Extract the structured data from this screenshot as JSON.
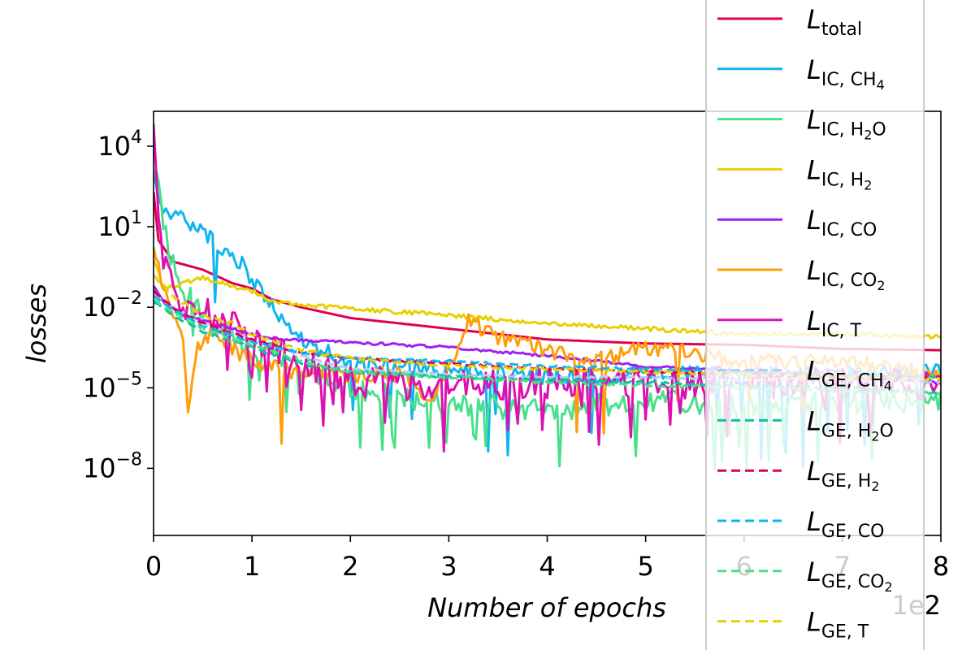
{
  "chart_data": {
    "type": "line",
    "title": "",
    "xlabel": "Number of epochs",
    "ylabel": "losses",
    "x_offset_label": "1e2",
    "xlim": [
      0,
      8
    ],
    "ylim_log10": [
      -10.5,
      5.3
    ],
    "yscale": "log",
    "grid": false,
    "legend_placement": "right",
    "x_ticks": [
      "0",
      "1",
      "2",
      "3",
      "4",
      "5",
      "6",
      "7",
      "8"
    ],
    "y_ticks": [
      {
        "base": "10",
        "exp": "4",
        "log10": 4
      },
      {
        "base": "10",
        "exp": "1",
        "log10": 1
      },
      {
        "base": "10",
        "exp": "−2",
        "log10": -2
      },
      {
        "base": "10",
        "exp": "−5",
        "log10": -5
      },
      {
        "base": "10",
        "exp": "−8",
        "log10": -8
      }
    ],
    "series": [
      {
        "name": "L_total",
        "main": "L",
        "sub": "total",
        "sub2": "",
        "sub3": "",
        "color": "#e0004e",
        "dash": false,
        "noise": 0,
        "dips": 0,
        "dip_depth": 0,
        "seed": 1,
        "points": [
          [
            0,
            2.3
          ],
          [
            0.05,
            0.5
          ],
          [
            0.2,
            -0.3
          ],
          [
            0.5,
            -0.6
          ],
          [
            0.8,
            -1.1
          ],
          [
            1.0,
            -1.3
          ],
          [
            1.2,
            -1.7
          ],
          [
            1.5,
            -2.0
          ],
          [
            2.0,
            -2.4
          ],
          [
            3.0,
            -2.8
          ],
          [
            4.0,
            -3.2
          ],
          [
            5.0,
            -3.35
          ],
          [
            6.0,
            -3.4
          ],
          [
            7.0,
            -3.55
          ],
          [
            8.0,
            -3.6
          ]
        ]
      },
      {
        "name": "L_IC,CH4",
        "main": "L",
        "sub": "IC, CH",
        "sub2": "4",
        "sub3": "",
        "color": "#0fb4f0",
        "dash": false,
        "noise": 0.3,
        "dips": 22,
        "dip_depth": 3.2,
        "seed": 2,
        "points": [
          [
            0,
            2.8
          ],
          [
            0.1,
            1.6
          ],
          [
            0.3,
            1.3
          ],
          [
            0.6,
            0.5
          ],
          [
            0.9,
            -0.4
          ],
          [
            1.1,
            -1.5
          ],
          [
            1.3,
            -2.4
          ],
          [
            1.5,
            -3.2
          ],
          [
            2,
            -4.1
          ],
          [
            3,
            -4.3
          ],
          [
            4,
            -4.6
          ],
          [
            5,
            -4.5
          ],
          [
            6,
            -4.5
          ],
          [
            7,
            -4.5
          ],
          [
            8,
            -4.4
          ]
        ]
      },
      {
        "name": "L_IC,H2O",
        "main": "L",
        "sub": "IC, H",
        "sub2": "2",
        "sub3": "O",
        "color": "#48e08a",
        "dash": false,
        "noise": 0.45,
        "dips": 26,
        "dip_depth": 2.5,
        "seed": 3,
        "points": [
          [
            0,
            3.0
          ],
          [
            0.05,
            2.5
          ],
          [
            0.15,
            0.0
          ],
          [
            0.3,
            -1.3
          ],
          [
            0.6,
            -2.5
          ],
          [
            1.0,
            -3.5
          ],
          [
            1.5,
            -4.2
          ],
          [
            2.0,
            -5.0
          ],
          [
            3.0,
            -5.6
          ],
          [
            4.0,
            -5.8
          ],
          [
            5.0,
            -5.5
          ],
          [
            6.0,
            -5.6
          ],
          [
            7.0,
            -5.5
          ],
          [
            8.0,
            -5.5
          ]
        ]
      },
      {
        "name": "L_IC,H2",
        "main": "L",
        "sub": "IC, H",
        "sub2": "2",
        "sub3": "",
        "color": "#e8d000",
        "dash": false,
        "noise": 0.08,
        "dips": 0,
        "dip_depth": 0,
        "seed": 4,
        "points": [
          [
            0,
            -0.2
          ],
          [
            0.1,
            -1.3
          ],
          [
            0.3,
            -1.1
          ],
          [
            0.5,
            -0.9
          ],
          [
            0.8,
            -1.2
          ],
          [
            1.0,
            -1.4
          ],
          [
            1.2,
            -1.8
          ],
          [
            1.5,
            -1.9
          ],
          [
            2.0,
            -2.05
          ],
          [
            3.0,
            -2.3
          ],
          [
            4.0,
            -2.6
          ],
          [
            5.0,
            -2.8
          ],
          [
            6.0,
            -3.0
          ],
          [
            7.0,
            -3.0
          ],
          [
            8.0,
            -3.1
          ]
        ]
      },
      {
        "name": "L_IC,CO",
        "main": "L",
        "sub": "IC, CO",
        "sub2": "",
        "sub3": "",
        "color": "#a020f0",
        "dash": false,
        "noise": 0.05,
        "dips": 0,
        "dip_depth": 0,
        "seed": 5,
        "points": [
          [
            0,
            -1.2
          ],
          [
            0.1,
            -1.8
          ],
          [
            0.3,
            -2.3
          ],
          [
            0.6,
            -2.6
          ],
          [
            1.0,
            -3.0
          ],
          [
            1.3,
            -3.2
          ],
          [
            2.0,
            -3.3
          ],
          [
            3.0,
            -3.5
          ],
          [
            4.0,
            -3.8
          ],
          [
            5.0,
            -4.2
          ],
          [
            6.0,
            -4.4
          ],
          [
            7.0,
            -4.6
          ],
          [
            8.0,
            -4.8
          ]
        ]
      },
      {
        "name": "L_IC,CO2",
        "main": "L",
        "sub": "IC, CO",
        "sub2": "2",
        "sub3": "",
        "color": "#ff9e0a",
        "dash": false,
        "noise": 0.3,
        "dips": 6,
        "dip_depth": 3,
        "seed": 6,
        "points": [
          [
            0,
            0.5
          ],
          [
            0.1,
            -1.5
          ],
          [
            0.3,
            -3.0
          ],
          [
            0.35,
            -5.8
          ],
          [
            0.45,
            -3.5
          ],
          [
            0.6,
            -2.8
          ],
          [
            0.8,
            -3.5
          ],
          [
            1.0,
            -4.0
          ],
          [
            1.5,
            -4.5
          ],
          [
            2.0,
            -4.5
          ],
          [
            2.5,
            -4.5
          ],
          [
            2.8,
            -5.4
          ],
          [
            3.0,
            -4.2
          ],
          [
            3.2,
            -2.5
          ],
          [
            3.5,
            -3.1
          ],
          [
            4.0,
            -3.6
          ],
          [
            4.5,
            -4.0
          ],
          [
            5.0,
            -3.5
          ],
          [
            5.5,
            -3.7
          ],
          [
            6.0,
            -4.0
          ],
          [
            7.0,
            -4.0
          ],
          [
            8.0,
            -4.5
          ]
        ]
      },
      {
        "name": "L_IC,T",
        "main": "L",
        "sub": "IC, T",
        "sub2": "",
        "sub3": "",
        "color": "#dd10b0",
        "dash": false,
        "noise": 0.6,
        "dips": 30,
        "dip_depth": 2.2,
        "seed": 7,
        "points": [
          [
            0,
            4.7
          ],
          [
            0.03,
            2.5
          ],
          [
            0.1,
            -0.5
          ],
          [
            0.3,
            -2.0
          ],
          [
            0.6,
            -2.3
          ],
          [
            0.9,
            -2.5
          ],
          [
            1.1,
            -3.5
          ],
          [
            1.5,
            -4.0
          ],
          [
            2.0,
            -4.8
          ],
          [
            3.0,
            -4.9
          ],
          [
            4.0,
            -4.8
          ],
          [
            5.0,
            -4.8
          ],
          [
            6.0,
            -4.8
          ],
          [
            7.0,
            -4.8
          ],
          [
            8.0,
            -4.9
          ]
        ]
      },
      {
        "name": "L_GE,CH4",
        "main": "L",
        "sub": "GE, CH",
        "sub2": "4",
        "sub3": "",
        "color": "#aecff4",
        "dash": true,
        "noise": 0.04,
        "dips": 0,
        "dip_depth": 0,
        "seed": 8,
        "points": [
          [
            0,
            -1.5
          ],
          [
            0.2,
            -2.0
          ],
          [
            0.5,
            -2.6
          ],
          [
            1.0,
            -3.2
          ],
          [
            1.5,
            -3.8
          ],
          [
            2.0,
            -4.3
          ],
          [
            3.0,
            -4.5
          ],
          [
            4.0,
            -4.6
          ],
          [
            5.0,
            -4.6
          ],
          [
            6.0,
            -4.7
          ],
          [
            7.0,
            -4.7
          ],
          [
            8.0,
            -4.8
          ]
        ]
      },
      {
        "name": "L_GE,H2O",
        "main": "L",
        "sub": "GE, H",
        "sub2": "2",
        "sub3": "O",
        "color": "#10c0a0",
        "dash": true,
        "noise": 0.05,
        "dips": 0,
        "dip_depth": 0,
        "seed": 9,
        "points": [
          [
            0,
            -1.8
          ],
          [
            0.2,
            -2.3
          ],
          [
            0.5,
            -2.9
          ],
          [
            1.0,
            -3.5
          ],
          [
            1.5,
            -4.1
          ],
          [
            2.0,
            -4.4
          ],
          [
            3.0,
            -4.6
          ],
          [
            4.0,
            -4.7
          ],
          [
            5.0,
            -4.8
          ],
          [
            6.0,
            -4.9
          ],
          [
            7.0,
            -5.0
          ],
          [
            8.0,
            -5.2
          ]
        ]
      },
      {
        "name": "L_GE,H2",
        "main": "L",
        "sub": "GE, H",
        "sub2": "2",
        "sub3": "",
        "color": "#e0004e",
        "dash": true,
        "noise": 0.04,
        "dips": 0,
        "dip_depth": 0,
        "seed": 10,
        "points": [
          [
            0,
            -1.4
          ],
          [
            0.2,
            -2.0
          ],
          [
            0.5,
            -2.6
          ],
          [
            1.0,
            -3.2
          ],
          [
            1.5,
            -3.7
          ],
          [
            2.0,
            -3.9
          ],
          [
            3.0,
            -4.1
          ],
          [
            4.0,
            -4.3
          ],
          [
            5.0,
            -4.4
          ],
          [
            6.0,
            -4.5
          ],
          [
            7.0,
            -4.6
          ],
          [
            8.0,
            -4.6
          ]
        ]
      },
      {
        "name": "L_GE,CO",
        "main": "L",
        "sub": "GE, CO",
        "sub2": "",
        "sub3": "",
        "color": "#0fb4f0",
        "dash": true,
        "noise": 0.04,
        "dips": 0,
        "dip_depth": 0,
        "seed": 11,
        "points": [
          [
            0,
            -1.6
          ],
          [
            0.2,
            -2.1
          ],
          [
            0.5,
            -2.7
          ],
          [
            1.0,
            -3.3
          ],
          [
            1.5,
            -3.7
          ],
          [
            2.0,
            -3.9
          ],
          [
            3.0,
            -4.0
          ],
          [
            4.0,
            -4.2
          ],
          [
            5.0,
            -4.3
          ],
          [
            6.0,
            -4.4
          ],
          [
            7.0,
            -4.5
          ],
          [
            8.0,
            -4.6
          ]
        ]
      },
      {
        "name": "L_GE,CO2",
        "main": "L",
        "sub": "GE, CO",
        "sub2": "2",
        "sub3": "",
        "color": "#48e08a",
        "dash": true,
        "noise": 0.06,
        "dips": 0,
        "dip_depth": 0,
        "seed": 12,
        "points": [
          [
            0,
            -1.7
          ],
          [
            0.2,
            -2.2
          ],
          [
            0.5,
            -2.8
          ],
          [
            1.0,
            -3.4
          ],
          [
            1.5,
            -4.0
          ],
          [
            2.0,
            -4.4
          ],
          [
            3.0,
            -4.6
          ],
          [
            4.0,
            -4.8
          ],
          [
            5.0,
            -4.9
          ],
          [
            6.0,
            -5.0
          ],
          [
            7.0,
            -5.1
          ],
          [
            8.0,
            -5.2
          ]
        ]
      },
      {
        "name": "L_GE,T",
        "main": "L",
        "sub": "GE, T",
        "sub2": "",
        "sub3": "",
        "color": "#e8d000",
        "dash": true,
        "noise": 0.06,
        "dips": 0,
        "dip_depth": 0,
        "seed": 13,
        "points": [
          [
            0,
            -0.8
          ],
          [
            0.2,
            -1.6
          ],
          [
            0.5,
            -2.3
          ],
          [
            0.8,
            -2.6
          ],
          [
            1.0,
            -3.0
          ],
          [
            1.5,
            -3.6
          ],
          [
            2.0,
            -3.9
          ],
          [
            3.0,
            -4.2
          ],
          [
            4.0,
            -4.3
          ],
          [
            5.0,
            -4.4
          ],
          [
            6.0,
            -4.5
          ],
          [
            7.0,
            -4.6
          ],
          [
            8.0,
            -4.7
          ]
        ]
      }
    ]
  }
}
